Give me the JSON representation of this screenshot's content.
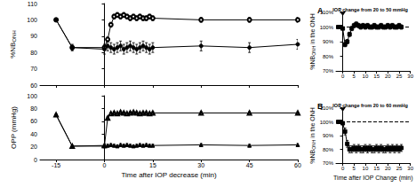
{
  "chart_data": [
    {
      "type": "line",
      "y_label": "%NB",
      "y_label_sub": "ONH",
      "x": [
        -15,
        -10,
        0,
        1,
        2,
        3,
        4,
        5,
        6,
        7,
        8,
        9,
        10,
        11,
        12,
        13,
        14,
        15,
        30,
        45,
        60
      ],
      "xlim": [
        -20,
        60
      ],
      "xticks": [
        -15,
        0,
        15,
        30,
        45,
        60
      ],
      "ylim": [
        60,
        110
      ],
      "yticks": [
        60,
        70,
        80,
        90,
        100,
        110
      ],
      "tick_labels": "y",
      "reference_x": 0,
      "series": [
        {
          "marker": "circle_open",
          "color": "#000000",
          "values": [
            100,
            83,
            83,
            88,
            97,
            102,
            103,
            102,
            103,
            102,
            101,
            102,
            101,
            102,
            101,
            101,
            102,
            101,
            100,
            100,
            100
          ],
          "errors": [
            1,
            1.5,
            1.5,
            1.5,
            1.5,
            1.5,
            1.5,
            1.5,
            1.5,
            1.5,
            1.5,
            1.5,
            1.5,
            1.5,
            1.5,
            1.5,
            1.5,
            1.5,
            1.5,
            1.5,
            1.5
          ]
        },
        {
          "marker": "circle_filled",
          "color": "#000000",
          "values": [
            100,
            83,
            82,
            84,
            83,
            82,
            83,
            84,
            82,
            83,
            84,
            83,
            82,
            83,
            84,
            83,
            82,
            83,
            84,
            83,
            85
          ],
          "errors": [
            1,
            2,
            3,
            3,
            3,
            3,
            3,
            3,
            3,
            3,
            3,
            3,
            3,
            3,
            3,
            3,
            3,
            3,
            3,
            3,
            3
          ]
        }
      ]
    },
    {
      "type": "line",
      "y_label": "OPP (mmHg)",
      "x_label": "Time after IOP decrease (min)",
      "x": [
        -15,
        -10,
        0,
        1,
        2,
        3,
        4,
        5,
        6,
        7,
        8,
        9,
        10,
        11,
        12,
        13,
        14,
        15,
        30,
        45,
        60
      ],
      "xlim": [
        -20,
        60
      ],
      "xticks": [
        -15,
        0,
        15,
        30,
        45,
        60
      ],
      "ylim": [
        0,
        100
      ],
      "yticks": [
        0,
        20,
        40,
        60,
        80,
        100
      ],
      "reference_x": 0,
      "series": [
        {
          "marker": "triangle_open",
          "color": "#000000",
          "values": [
            70,
            21,
            22,
            65,
            72,
            73,
            72,
            74,
            73,
            72,
            73,
            74,
            73,
            72,
            73,
            73,
            72,
            73,
            73,
            73,
            73
          ],
          "errors": [
            1,
            1,
            1,
            2,
            2,
            2,
            2,
            2,
            2,
            2,
            2,
            2,
            2,
            2,
            2,
            2,
            2,
            2,
            2,
            2,
            2
          ]
        },
        {
          "marker": "triangle_filled",
          "color": "#000000",
          "values": [
            70,
            21,
            21,
            22,
            23,
            22,
            21,
            23,
            22,
            23,
            22,
            21,
            22,
            23,
            22,
            23,
            22,
            22,
            23,
            22,
            23
          ],
          "errors": [
            1,
            1,
            2,
            2,
            2,
            2,
            2,
            2,
            2,
            2,
            2,
            2,
            2,
            2,
            2,
            2,
            2,
            2,
            2,
            2,
            2
          ]
        }
      ]
    },
    {
      "type": "line",
      "title": "A",
      "annotation": "IOP change from 20 to 50 mmHg",
      "y_label": "%NB",
      "y_label_sub": "ONH",
      "y_label_suffix": " in the ONH",
      "x": [
        -2,
        -1,
        0,
        1,
        2,
        3,
        4,
        5,
        6,
        7,
        8,
        9,
        10,
        11,
        12,
        13,
        14,
        15,
        16,
        17,
        18,
        19,
        20,
        21,
        22,
        23,
        24,
        25,
        26
      ],
      "xlim": [
        -3,
        30
      ],
      "xticks": [
        0,
        5,
        10,
        15,
        20,
        25,
        30
      ],
      "ylim": [
        70,
        110
      ],
      "yticks": [
        {
          "value": 70,
          "label": "70%"
        },
        {
          "value": 80,
          "label": "80%"
        },
        {
          "value": 90,
          "label": "90%"
        },
        {
          "value": 100,
          "label": "100%"
        },
        {
          "value": 110,
          "label": "110%"
        }
      ],
      "reference_x": 0,
      "reference_y": 100,
      "series": [
        {
          "marker": "square_filled",
          "color": "#000000",
          "values": [
            100,
            100,
            99,
            88,
            90,
            95,
            99,
            101,
            102,
            101,
            100,
            101,
            100,
            101,
            100,
            100,
            101,
            100,
            100,
            101,
            100,
            100,
            101,
            100,
            101,
            100,
            100,
            101,
            100
          ],
          "errors": [
            0.5,
            0.5,
            0.5,
            1.5,
            1.5,
            1.5,
            1.5,
            1.5,
            1.5,
            1.5,
            1.5,
            1.5,
            1.5,
            1.5,
            1.5,
            1.5,
            1.5,
            1.5,
            1.5,
            1.5,
            1.5,
            1.5,
            1.5,
            1.5,
            1.5,
            1.5,
            1.5,
            1.5,
            1.5
          ]
        }
      ]
    },
    {
      "type": "line",
      "title": "B",
      "annotation": "IOP change from 20 to 60 mmHg",
      "y_label": "%NB",
      "y_label_sub": "ONH",
      "y_label_suffix": " in the ONH",
      "x_label": "Time after IOP Change (min)",
      "x": [
        -2,
        -1,
        0,
        1,
        2,
        3,
        4,
        5,
        6,
        7,
        8,
        9,
        10,
        11,
        12,
        13,
        14,
        15,
        16,
        17,
        18,
        19,
        20,
        21,
        22,
        23,
        24,
        25,
        26
      ],
      "xlim": [
        -3,
        30
      ],
      "xticks": [
        0,
        5,
        10,
        15,
        20,
        25,
        30
      ],
      "ylim": [
        70,
        110
      ],
      "yticks": [
        {
          "value": 70,
          "label": "70%"
        },
        {
          "value": 80,
          "label": "80%"
        },
        {
          "value": 90,
          "label": "90%"
        },
        {
          "value": 100,
          "label": "100%"
        },
        {
          "value": 110,
          "label": "110%"
        }
      ],
      "reference_x": 0,
      "reference_y": 100,
      "series": [
        {
          "marker": "square_filled",
          "color": "#000000",
          "values": [
            100,
            100,
            99,
            93,
            84,
            80,
            80,
            81,
            80,
            81,
            80,
            80,
            81,
            80,
            81,
            80,
            80,
            81,
            80,
            81,
            80,
            80,
            81,
            80,
            81,
            80,
            81,
            80,
            81
          ],
          "errors": [
            0.5,
            0.5,
            0.5,
            2.5,
            2.5,
            2.5,
            2.5,
            2.5,
            2.5,
            2.5,
            2.5,
            2.5,
            2.5,
            2.5,
            2.5,
            2.5,
            2.5,
            2.5,
            2.5,
            2.5,
            2.5,
            2.5,
            2.5,
            2.5,
            2.5,
            2.5,
            2.5,
            2.5,
            2.5
          ]
        }
      ]
    }
  ]
}
